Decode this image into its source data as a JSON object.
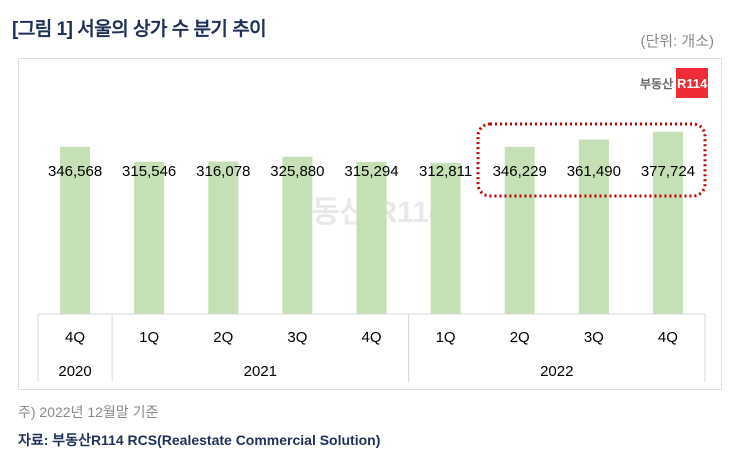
{
  "title": "[그림 1] 서울의 상가 수 분기 추이",
  "unit": "(단위: 개소)",
  "logo": {
    "text": "부동산",
    "badge": "R114",
    "color": "#ee2b36"
  },
  "note": "주) 2022년 12월말 기준",
  "source": "자료: 부동산R114 RCS(Realestate Commercial Solution)",
  "chart_data": {
    "type": "bar",
    "categories": [
      "4Q",
      "1Q",
      "2Q",
      "3Q",
      "4Q",
      "1Q",
      "2Q",
      "3Q",
      "4Q"
    ],
    "years": [
      {
        "label": "2020",
        "span": 1
      },
      {
        "label": "2021",
        "span": 4
      },
      {
        "label": "2022",
        "span": 4
      }
    ],
    "values": [
      346568,
      315546,
      316078,
      325880,
      315294,
      312811,
      346229,
      361490,
      377724
    ],
    "data_labels": [
      "346,568",
      "315,546",
      "316,078",
      "325,880",
      "315,294",
      "312,811",
      "346,229",
      "361,490",
      "377,724"
    ],
    "ylim": [
      0,
      400000
    ],
    "bar_color": "#c5e0b4",
    "highlight": {
      "range": [
        "2Q 2022",
        "4Q 2022"
      ],
      "color": "#c00000",
      "style": "dotted"
    },
    "grid": false
  }
}
